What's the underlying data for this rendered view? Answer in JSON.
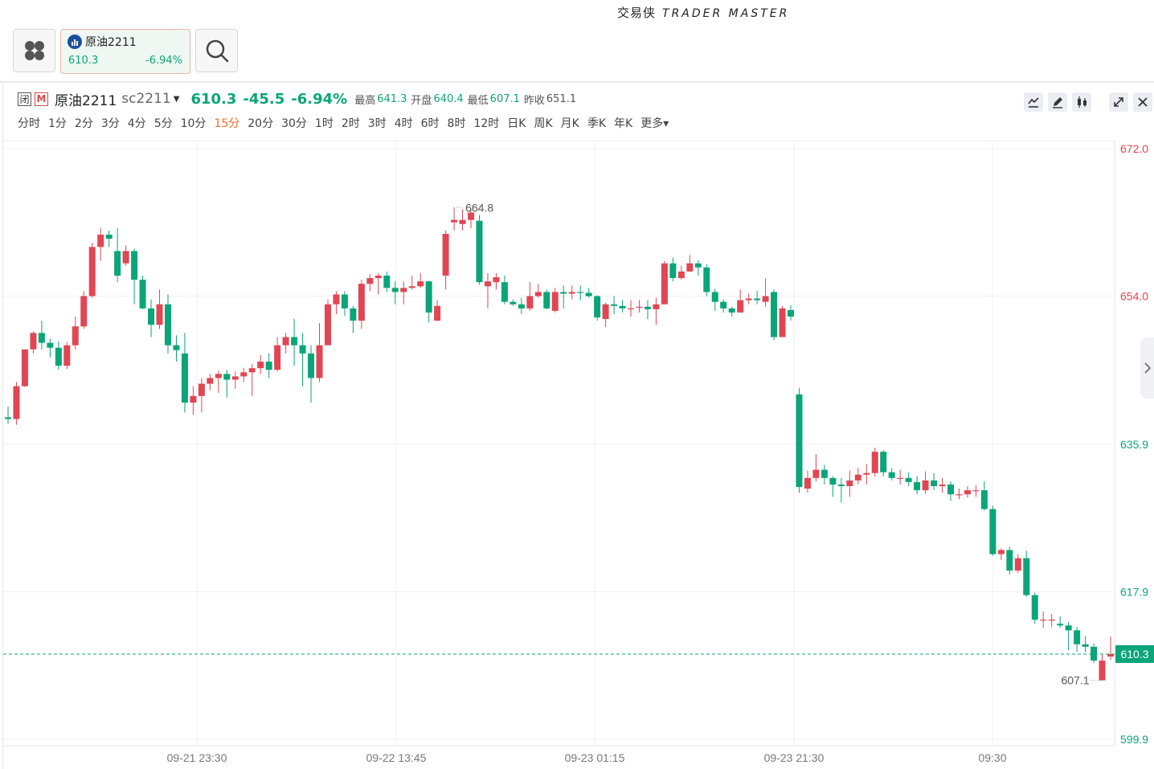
{
  "app": {
    "brand_cn": "交易侠",
    "brand_en": "TRADER MASTER"
  },
  "tab": {
    "name": "原油2211",
    "price": "610.3",
    "change_pct": "-6.94%"
  },
  "header": {
    "close_tag": "闭",
    "m_tag": "M",
    "name": "原油2211",
    "code": "sc2211",
    "price": "610.3",
    "change": "-45.5",
    "change_pct": "-6.94%",
    "high_label": "最高",
    "high": "641.3",
    "open_label": "开盘",
    "open": "640.4",
    "low_label": "最低",
    "low": "607.1",
    "prev_label": "昨收",
    "prev": "651.1"
  },
  "periods": [
    "分时",
    "1分",
    "2分",
    "3分",
    "4分",
    "5分",
    "10分",
    "15分",
    "20分",
    "30分",
    "1时",
    "2时",
    "3时",
    "4时",
    "6时",
    "8时",
    "12时",
    "日K",
    "周K",
    "月K",
    "季K",
    "年K",
    "更多"
  ],
  "active_period": "15分",
  "icons": [
    "apps-icon",
    "chart-badge-icon",
    "search-icon",
    "line-style-icon",
    "draw-icon",
    "indicator-icon",
    "expand-icon",
    "close-icon",
    "chevron-right-icon"
  ],
  "colors": {
    "up": "#e04653",
    "down": "#0aa578",
    "price_red": "#e04653",
    "price_green": "#0aa578",
    "active": "#f06a2e"
  },
  "chart_data": {
    "type": "candlestick",
    "y_ticks": [
      "672.0",
      "654.0",
      "635.9",
      "617.9",
      "599.9"
    ],
    "x_ticks": [
      "09-21 23:30",
      "09-22 13:45",
      "09-23 01:15",
      "09-23 21:30",
      "09:30"
    ],
    "ylim": [
      599.9,
      672.0
    ],
    "last_price": "610.3",
    "high_mark": "664.8",
    "low_mark": "607.1",
    "candles": [
      [
        639.2,
        639.0,
        640.5,
        638.4
      ],
      [
        639.0,
        643.0,
        643.5,
        638.3
      ],
      [
        643.0,
        647.5,
        647.5,
        642.9
      ],
      [
        647.5,
        649.5,
        649.7,
        647.0
      ],
      [
        649.5,
        648.3,
        651.0,
        647.5
      ],
      [
        648.3,
        647.7,
        648.8,
        646.5
      ],
      [
        647.7,
        645.5,
        648.5,
        645.0
      ],
      [
        645.5,
        648.0,
        648.4,
        645.1
      ],
      [
        648.0,
        650.3,
        651.5,
        647.5
      ],
      [
        650.3,
        654.0,
        654.6,
        650.0
      ],
      [
        654.0,
        660.0,
        660.5,
        653.8
      ],
      [
        660.0,
        661.5,
        662.3,
        658.3
      ],
      [
        661.5,
        661.0,
        662.0,
        660.0
      ],
      [
        659.5,
        656.5,
        662.3,
        655.7
      ],
      [
        658.0,
        659.5,
        660.2,
        657.7
      ],
      [
        659.5,
        656.0,
        659.8,
        653.0
      ],
      [
        656.0,
        652.5,
        656.5,
        652.4
      ],
      [
        652.5,
        650.5,
        653.6,
        649.0
      ],
      [
        650.5,
        653.0,
        654.8,
        650.0
      ],
      [
        653.0,
        648.0,
        654.2,
        647.0
      ],
      [
        648.0,
        647.4,
        649.2,
        646.0
      ],
      [
        647.0,
        641.0,
        649.5,
        639.8
      ],
      [
        641.0,
        641.8,
        643.0,
        639.5
      ],
      [
        641.8,
        643.3,
        644.0,
        639.8
      ],
      [
        643.3,
        644.0,
        644.5,
        642.5
      ],
      [
        644.0,
        644.5,
        644.9,
        642.2
      ],
      [
        644.5,
        643.8,
        645.0,
        641.6
      ],
      [
        643.8,
        644.2,
        644.8,
        642.7
      ],
      [
        644.2,
        644.7,
        645.2,
        643.5
      ],
      [
        644.7,
        645.2,
        645.7,
        641.8
      ],
      [
        645.2,
        646.0,
        646.8,
        644.5
      ],
      [
        646.0,
        645.0,
        647.0,
        644.0
      ],
      [
        645.0,
        648.0,
        649.0,
        644.8
      ],
      [
        648.0,
        649.0,
        649.5,
        647.0
      ],
      [
        649.0,
        648.0,
        651.2,
        645.5
      ],
      [
        648.0,
        647.0,
        649.5,
        643.0
      ],
      [
        647.0,
        644.0,
        648.0,
        641.0
      ],
      [
        644.0,
        648.0,
        650.7,
        643.5
      ],
      [
        648.0,
        653.0,
        653.6,
        648.0
      ],
      [
        653.0,
        654.2,
        654.6,
        651.8
      ],
      [
        654.2,
        652.5,
        654.6,
        651.6
      ],
      [
        652.5,
        651.0,
        652.8,
        649.5
      ],
      [
        651.0,
        655.5,
        656.0,
        650.0
      ],
      [
        655.5,
        656.2,
        656.7,
        654.6
      ],
      [
        656.2,
        656.5,
        656.8,
        654.2
      ],
      [
        656.5,
        655.0,
        657.0,
        654.5
      ],
      [
        655.0,
        654.5,
        655.8,
        653.0
      ],
      [
        654.5,
        655.0,
        655.8,
        653.0
      ],
      [
        655.0,
        655.2,
        656.5,
        654.8
      ],
      [
        655.2,
        655.8,
        656.8,
        655.0
      ],
      [
        655.8,
        652.0,
        655.9,
        650.8
      ],
      [
        651.0,
        652.8,
        653.5,
        651.0
      ],
      [
        656.5,
        661.6,
        662.0,
        654.8
      ],
      [
        663.0,
        663.3,
        664.8,
        662.0
      ],
      [
        662.8,
        663.3,
        664.6,
        662.0
      ],
      [
        663.3,
        664.2,
        664.6,
        662.3
      ],
      [
        663.2,
        655.7,
        663.9,
        655.4
      ],
      [
        655.2,
        655.8,
        656.8,
        652.5
      ],
      [
        655.7,
        656.3,
        656.8,
        654.8
      ],
      [
        655.7,
        653.3,
        656.5,
        653.0
      ],
      [
        653.3,
        653.0,
        653.6,
        652.8
      ],
      [
        653.0,
        652.5,
        653.8,
        651.8
      ],
      [
        652.5,
        654.0,
        655.7,
        652.2
      ],
      [
        654.0,
        654.5,
        655.5,
        653.8
      ],
      [
        654.5,
        652.5,
        654.8,
        652.4
      ],
      [
        652.2,
        654.5,
        655.0,
        652.0
      ],
      [
        654.5,
        654.3,
        655.3,
        652.5
      ],
      [
        654.3,
        654.5,
        655.3,
        653.6
      ],
      [
        654.5,
        654.4,
        655.3,
        653.5
      ],
      [
        654.4,
        654.0,
        655.0,
        653.8
      ],
      [
        654.0,
        651.4,
        654.1,
        651.0
      ],
      [
        651.2,
        653.0,
        653.2,
        650.2
      ],
      [
        653.0,
        652.8,
        654.0,
        651.8
      ],
      [
        652.8,
        652.5,
        653.5,
        652.0
      ],
      [
        652.5,
        652.5,
        653.5,
        651.5
      ],
      [
        652.6,
        652.7,
        653.5,
        652.0
      ],
      [
        652.7,
        652.4,
        653.5,
        651.2
      ],
      [
        652.4,
        653.0,
        653.8,
        650.5
      ],
      [
        653.0,
        658.0,
        658.3,
        654.0
      ],
      [
        658.0,
        656.2,
        658.7,
        655.8
      ],
      [
        656.2,
        657.0,
        657.7,
        656.0
      ],
      [
        657.0,
        658.0,
        659.0,
        657.0
      ],
      [
        658.0,
        657.5,
        658.4,
        656.5
      ],
      [
        657.5,
        654.5,
        657.9,
        654.0
      ],
      [
        654.5,
        653.3,
        654.9,
        652.2
      ],
      [
        653.3,
        652.5,
        653.6,
        652.0
      ],
      [
        652.5,
        652.0,
        652.7,
        651.5
      ],
      [
        652.0,
        653.5,
        654.8,
        652.0
      ],
      [
        653.5,
        653.7,
        654.3,
        653.0
      ],
      [
        653.7,
        653.5,
        654.6,
        653.0
      ],
      [
        653.3,
        654.0,
        656.2,
        652.7
      ],
      [
        654.5,
        649.0,
        654.8,
        648.6
      ],
      [
        649.0,
        652.5,
        652.8,
        649.0
      ],
      [
        652.3,
        651.5,
        652.9,
        651.0
      ],
      [
        642.0,
        630.7,
        642.8,
        630.0
      ],
      [
        630.5,
        631.8,
        632.7,
        630.0
      ],
      [
        631.8,
        632.8,
        634.7,
        631.4
      ],
      [
        632.8,
        631.8,
        633.4,
        631.0
      ],
      [
        631.8,
        631.0,
        632.0,
        629.5
      ],
      [
        631.0,
        630.8,
        631.8,
        628.8
      ],
      [
        630.8,
        631.5,
        632.7,
        629.5
      ],
      [
        631.5,
        632.2,
        633.0,
        631.0
      ],
      [
        632.2,
        632.4,
        633.5,
        631.0
      ],
      [
        632.4,
        635.0,
        635.5,
        632.0
      ],
      [
        635.0,
        632.5,
        635.2,
        632.0
      ],
      [
        632.5,
        631.8,
        633.0,
        631.5
      ],
      [
        631.8,
        631.8,
        632.8,
        631.0
      ],
      [
        631.8,
        631.3,
        632.5,
        630.8
      ],
      [
        631.3,
        630.3,
        632.0,
        629.8
      ],
      [
        630.3,
        631.5,
        632.6,
        629.9
      ],
      [
        631.5,
        630.8,
        632.4,
        630.3
      ],
      [
        630.8,
        631.0,
        631.8,
        630.0
      ],
      [
        631.0,
        629.8,
        631.4,
        629.0
      ],
      [
        629.8,
        629.8,
        630.5,
        629.2
      ],
      [
        629.8,
        630.3,
        630.8,
        629.4
      ],
      [
        630.3,
        630.3,
        630.9,
        629.5
      ],
      [
        630.3,
        628.0,
        631.4,
        627.8
      ],
      [
        628.0,
        622.5,
        628.4,
        622.3
      ],
      [
        622.5,
        623.0,
        623.2,
        621.8
      ],
      [
        623.0,
        620.5,
        623.4,
        620.0
      ],
      [
        620.5,
        622.0,
        622.5,
        620.2
      ],
      [
        622.0,
        617.5,
        622.9,
        617.3
      ],
      [
        617.5,
        614.5,
        617.8,
        614.0
      ],
      [
        614.5,
        614.5,
        615.5,
        613.5
      ],
      [
        614.5,
        614.5,
        615.2,
        613.6
      ],
      [
        614.0,
        613.8,
        614.9,
        613.5
      ],
      [
        613.8,
        613.2,
        614.2,
        610.8
      ],
      [
        613.2,
        611.5,
        613.6,
        610.6
      ],
      [
        611.5,
        611.2,
        612.5,
        610.5
      ],
      [
        611.2,
        609.5,
        611.6,
        609.2
      ],
      [
        607.1,
        609.5,
        610.3,
        607.1
      ],
      [
        610.0,
        610.3,
        612.4,
        609.6
      ]
    ]
  }
}
